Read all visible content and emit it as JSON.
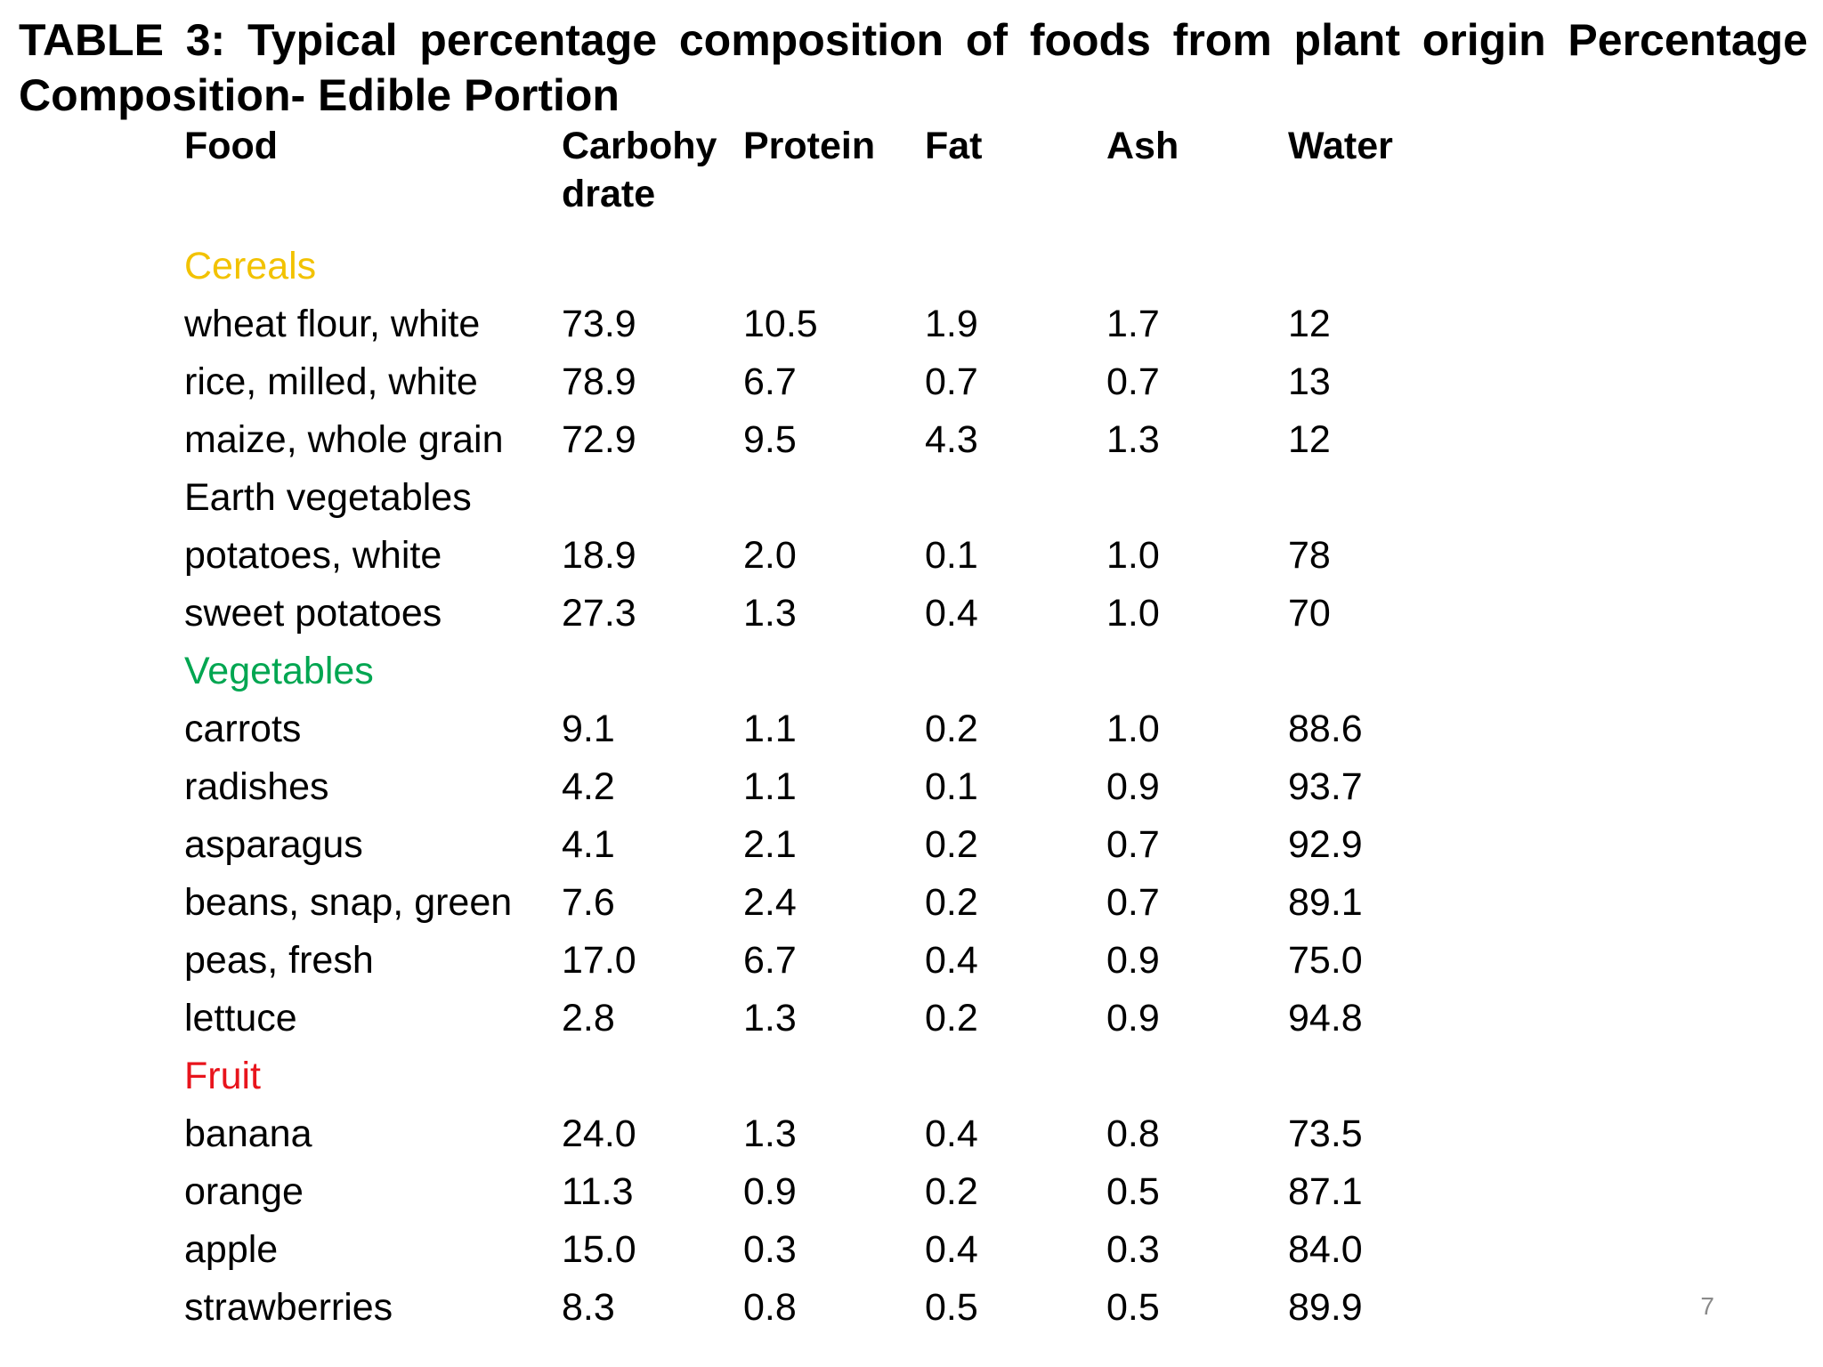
{
  "title": "TABLE 3: Typical percentage composition of foods from plant origin Percentage Composition- Edible Portion",
  "table": {
    "headers": [
      "Food",
      "Carbohy drate",
      "Protein",
      "Fat",
      "Ash",
      "Water"
    ],
    "categories": [
      {
        "name": "Cereals",
        "color": "#f2c200"
      },
      {
        "name": "Earth vegetables",
        "color": "#000000"
      },
      {
        "name": "Vegetables",
        "color": "#00a651"
      },
      {
        "name": "Fruit",
        "color": "#e8141c"
      }
    ],
    "rows": [
      {
        "food": "wheat flour, white",
        "carbohydrate": "73.9",
        "protein": "10.5",
        "fat": "1.9",
        "ash": "1.7",
        "water": "12"
      },
      {
        "food": "rice, milled, white",
        "carbohydrate": "78.9",
        "protein": "6.7",
        "fat": "0.7",
        "ash": "0.7",
        "water": "13"
      },
      {
        "food": "maize, whole grain",
        "carbohydrate": "72.9",
        "protein": "9.5",
        "fat": "4.3",
        "ash": "1.3",
        "water": "12"
      },
      {
        "food": "potatoes, white",
        "carbohydrate": "18.9",
        "protein": "2.0",
        "fat": "0.1",
        "ash": "1.0",
        "water": "78"
      },
      {
        "food": "sweet potatoes",
        "carbohydrate": "27.3",
        "protein": "1.3",
        "fat": "0.4",
        "ash": "1.0",
        "water": "70"
      },
      {
        "food": "carrots",
        "carbohydrate": "9.1",
        "protein": "1.1",
        "fat": "0.2",
        "ash": "1.0",
        "water": "88.6"
      },
      {
        "food": "radishes",
        "carbohydrate": "4.2",
        "protein": "1.1",
        "fat": "0.1",
        "ash": "0.9",
        "water": "93.7"
      },
      {
        "food": "asparagus",
        "carbohydrate": "4.1",
        "protein": "2.1",
        "fat": "0.2",
        "ash": "0.7",
        "water": "92.9"
      },
      {
        "food": "beans, snap, green",
        "carbohydrate": "7.6",
        "protein": "2.4",
        "fat": "0.2",
        "ash": "0.7",
        "water": "89.1"
      },
      {
        "food": "peas, fresh",
        "carbohydrate": "17.0",
        "protein": "6.7",
        "fat": "0.4",
        "ash": "0.9",
        "water": "75.0"
      },
      {
        "food": "lettuce",
        "carbohydrate": "2.8",
        "protein": "1.3",
        "fat": "0.2",
        "ash": "0.9",
        "water": "94.8"
      },
      {
        "food": "banana",
        "carbohydrate": "24.0",
        "protein": "1.3",
        "fat": "0.4",
        "ash": "0.8",
        "water": "73.5"
      },
      {
        "food": "orange",
        "carbohydrate": "11.3",
        "protein": "0.9",
        "fat": "0.2",
        "ash": "0.5",
        "water": "87.1"
      },
      {
        "food": "apple",
        "carbohydrate": "15.0",
        "protein": "0.3",
        "fat": "0.4",
        "ash": "0.3",
        "water": "84.0"
      },
      {
        "food": "strawberries",
        "carbohydrate": "8.3",
        "protein": "0.8",
        "fat": "0.5",
        "ash": "0.5",
        "water": "89.9"
      }
    ]
  },
  "page_number": "7"
}
